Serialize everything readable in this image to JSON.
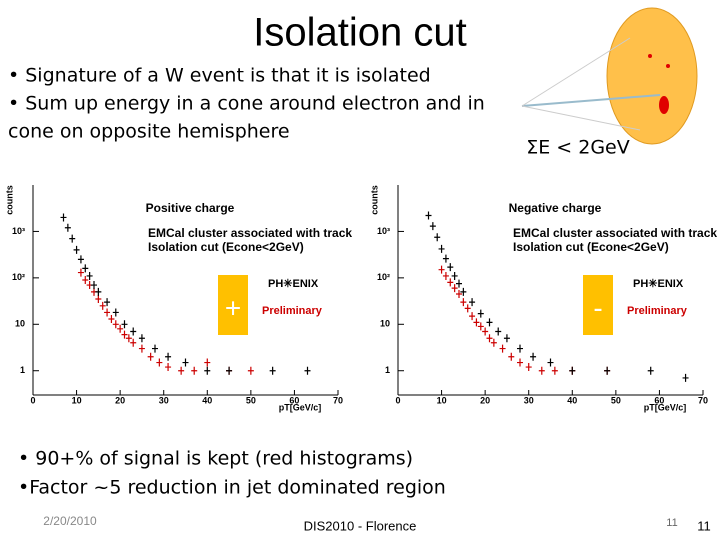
{
  "slide": {
    "title": "Isolation cut",
    "bullets": [
      "• Signature of a W event is that it is isolated",
      "• Sum up energy in a cone around electron and in",
      "cone on opposite hemisphere"
    ],
    "annotation": "ΣE < 2GeV",
    "plots": [
      {
        "y_label": "counts",
        "charge_label": "Positive charge",
        "description": "EMCal cluster associated with track",
        "cut_label": "Isolation cut (Econe<2GeV)",
        "logo": "PH✳ENIX",
        "preliminary": "Preliminary",
        "sign": "+",
        "x_label": "pT[GeV/c]",
        "xlim": [
          0,
          70
        ],
        "xticks": [
          0,
          10,
          20,
          30,
          40,
          50,
          60,
          70
        ],
        "log_y": true,
        "ylim": [
          0.3,
          10000
        ],
        "yticks": [
          1,
          10,
          {
            "value": 100,
            "label": "10²"
          },
          {
            "value": 1000,
            "label": "10³"
          }
        ],
        "series": [
          {
            "name": "signal",
            "color": "#cc0000",
            "x": [
              11,
              12,
              13,
              14,
              15,
              16,
              17,
              18,
              19,
              20,
              21,
              22,
              23,
              25,
              27,
              29,
              31,
              34,
              37,
              40,
              45,
              50
            ],
            "values": [
              130,
              90,
              70,
              50,
              35,
              25,
              18,
              13,
              10,
              8,
              6,
              5,
              4,
              3,
              2,
              1.5,
              1.2,
              1,
              1,
              1.5,
              1,
              1
            ]
          },
          {
            "name": "background",
            "color": "#000000",
            "x": [
              7,
              8,
              9,
              10,
              11,
              12,
              13,
              14,
              15,
              17,
              19,
              21,
              23,
              25,
              28,
              31,
              35,
              40,
              45,
              55,
              63
            ],
            "values": [
              2000,
              1200,
              700,
              400,
              250,
              160,
              110,
              70,
              50,
              30,
              18,
              10,
              7,
              5,
              3,
              2,
              1.5,
              1,
              1,
              1,
              1
            ]
          }
        ]
      },
      {
        "y_label": "counts",
        "charge_label": "Negative charge",
        "description": "EMCal cluster associated with track",
        "cut_label": "Isolation cut (Econe<2GeV)",
        "logo": "PH✳ENIX",
        "preliminary": "Preliminary",
        "sign": "-",
        "x_label": "pT[GeV/c]",
        "xlim": [
          0,
          70
        ],
        "xticks": [
          0,
          10,
          20,
          30,
          40,
          50,
          60,
          70
        ],
        "log_y": true,
        "ylim": [
          0.3,
          10000
        ],
        "yticks": [
          1,
          10,
          {
            "value": 100,
            "label": "10²"
          },
          {
            "value": 1000,
            "label": "10³"
          }
        ],
        "series": [
          {
            "name": "signal",
            "color": "#cc0000",
            "x": [
              10,
              11,
              12,
              13,
              14,
              15,
              16,
              17,
              18,
              19,
              20,
              21,
              22,
              24,
              26,
              28,
              30,
              33,
              36,
              40,
              48
            ],
            "values": [
              150,
              110,
              80,
              60,
              45,
              30,
              22,
              15,
              11,
              9,
              7,
              5,
              4,
              3,
              2,
              1.5,
              1.2,
              1,
              1,
              1,
              1
            ]
          },
          {
            "name": "background",
            "color": "#000000",
            "x": [
              7,
              8,
              9,
              10,
              11,
              12,
              13,
              14,
              15,
              17,
              19,
              21,
              23,
              25,
              28,
              31,
              35,
              40,
              48,
              58,
              66
            ],
            "values": [
              2200,
              1300,
              750,
              420,
              260,
              170,
              110,
              75,
              50,
              30,
              17,
              11,
              7,
              5,
              3,
              2,
              1.5,
              1,
              1,
              1,
              0.7
            ]
          }
        ]
      }
    ],
    "bottom_bullets": [
      "• 90+% of signal is kept (red histograms)",
      "•Factor ~5 reduction in jet dominated region"
    ],
    "footer": {
      "date": "2/20/2010",
      "event": "DIS2010 - Florence",
      "slide_number": "11",
      "page_number": "11"
    }
  }
}
